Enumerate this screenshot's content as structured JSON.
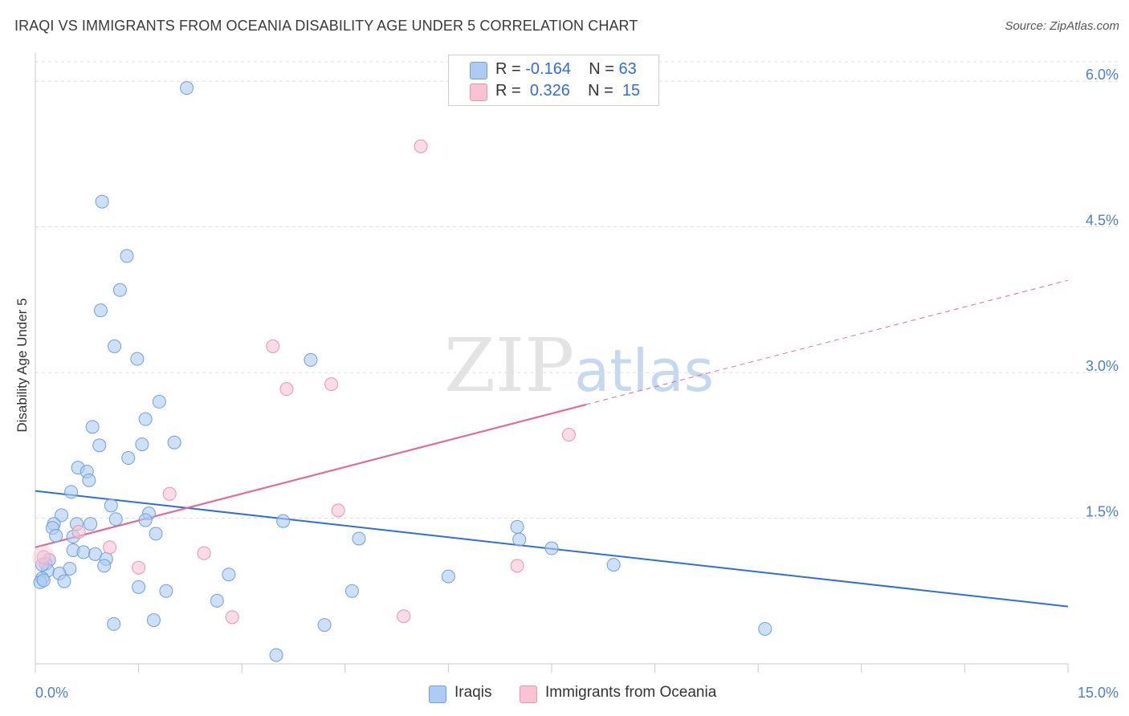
{
  "header": {
    "title": "IRAQI VS IMMIGRANTS FROM OCEANIA DISABILITY AGE UNDER 5 CORRELATION CHART",
    "source": "Source: ZipAtlas.com"
  },
  "watermark": {
    "part1": "ZIP",
    "part2": "atlas"
  },
  "legend_top": {
    "rows": [
      {
        "r_label": "R =",
        "r_value": "-0.164",
        "n_label": "N =",
        "n_value": "63"
      },
      {
        "r_label": "R =",
        "r_value": "0.326",
        "n_label": "N =",
        "n_value": "15"
      }
    ]
  },
  "legend_bottom": {
    "items": [
      {
        "label": "Iraqis"
      },
      {
        "label": "Immigrants from Oceania"
      }
    ]
  },
  "colors": {
    "iraqi_fill": "#aecbf2",
    "iraqi_stroke": "#6f9fdc",
    "iraqi_line": "#2f6fd4",
    "oceania_fill": "#f9c3d3",
    "oceania_stroke": "#ea93ad",
    "oceania_line": "#e06b98",
    "grid": "#dddddd",
    "tick_text": "#4a7fd0"
  },
  "chart_data": {
    "type": "scatter",
    "title": "IRAQI VS IMMIGRANTS FROM OCEANIA DISABILITY AGE UNDER 5 CORRELATION CHART",
    "xlabel": "",
    "ylabel": "Disability Age Under 5",
    "xlim": [
      0,
      15
    ],
    "ylim": [
      0,
      6.2
    ],
    "x_tick_labels": [
      {
        "value": 0,
        "label": "0.0%"
      },
      {
        "value": 15,
        "label": "15.0%"
      }
    ],
    "y_tick_labels": [
      {
        "value": 1.5,
        "label": "1.5%"
      },
      {
        "value": 3.0,
        "label": "3.0%"
      },
      {
        "value": 4.5,
        "label": "4.5%"
      },
      {
        "value": 6.0,
        "label": "6.0%"
      }
    ],
    "grid": true,
    "legend_position": "top-center",
    "series": [
      {
        "name": "Iraqis",
        "points": [
          [
            2.2,
            5.93
          ],
          [
            0.97,
            4.76
          ],
          [
            1.33,
            4.2
          ],
          [
            1.23,
            3.85
          ],
          [
            0.95,
            3.64
          ],
          [
            1.15,
            3.27
          ],
          [
            1.48,
            3.14
          ],
          [
            4.0,
            3.13
          ],
          [
            1.8,
            2.7
          ],
          [
            1.6,
            2.52
          ],
          [
            0.83,
            2.44
          ],
          [
            2.02,
            2.28
          ],
          [
            0.93,
            2.25
          ],
          [
            1.55,
            2.26
          ],
          [
            1.35,
            2.12
          ],
          [
            0.62,
            2.02
          ],
          [
            0.75,
            1.98
          ],
          [
            0.78,
            1.89
          ],
          [
            0.52,
            1.77
          ],
          [
            1.1,
            1.63
          ],
          [
            0.38,
            1.53
          ],
          [
            1.65,
            1.55
          ],
          [
            1.6,
            1.48
          ],
          [
            1.17,
            1.49
          ],
          [
            3.6,
            1.47
          ],
          [
            0.6,
            1.44
          ],
          [
            0.8,
            1.44
          ],
          [
            0.27,
            1.44
          ],
          [
            0.25,
            1.4
          ],
          [
            0.3,
            1.32
          ],
          [
            0.55,
            1.31
          ],
          [
            1.75,
            1.34
          ],
          [
            7.0,
            1.41
          ],
          [
            4.7,
            1.29
          ],
          [
            7.03,
            1.28
          ],
          [
            7.5,
            1.19
          ],
          [
            0.55,
            1.17
          ],
          [
            0.7,
            1.15
          ],
          [
            0.87,
            1.13
          ],
          [
            1.03,
            1.08
          ],
          [
            0.2,
            1.07
          ],
          [
            0.15,
            1.03
          ],
          [
            1.0,
            1.01
          ],
          [
            8.4,
            1.02
          ],
          [
            0.5,
            0.98
          ],
          [
            0.18,
            0.96
          ],
          [
            0.35,
            0.93
          ],
          [
            2.81,
            0.92
          ],
          [
            6.0,
            0.9
          ],
          [
            0.1,
            0.88
          ],
          [
            0.07,
            0.84
          ],
          [
            0.42,
            0.85
          ],
          [
            1.5,
            0.79
          ],
          [
            1.9,
            0.75
          ],
          [
            4.6,
            0.75
          ],
          [
            2.64,
            0.65
          ],
          [
            1.72,
            0.45
          ],
          [
            1.14,
            0.41
          ],
          [
            4.2,
            0.4
          ],
          [
            10.6,
            0.36
          ],
          [
            3.5,
            0.09
          ],
          [
            0.12,
            0.86
          ],
          [
            0.1,
            1.02
          ]
        ],
        "trendline": {
          "x": [
            0,
            15
          ],
          "y": [
            1.78,
            0.59
          ],
          "style": "solid"
        }
      },
      {
        "name": "Immigrants from Oceania",
        "points": [
          [
            5.6,
            5.33
          ],
          [
            3.45,
            3.27
          ],
          [
            3.65,
            2.83
          ],
          [
            4.3,
            2.88
          ],
          [
            7.75,
            2.36
          ],
          [
            1.95,
            1.75
          ],
          [
            4.4,
            1.58
          ],
          [
            0.63,
            1.36
          ],
          [
            1.08,
            1.2
          ],
          [
            2.45,
            1.14
          ],
          [
            0.12,
            1.1
          ],
          [
            7.0,
            1.01
          ],
          [
            1.5,
            0.99
          ],
          [
            2.86,
            0.48
          ],
          [
            5.35,
            0.49
          ]
        ],
        "trendline": {
          "x": [
            0,
            8.0,
            15
          ],
          "y": [
            1.2,
            2.67,
            3.95
          ],
          "style": "solid-then-dashed"
        }
      }
    ]
  }
}
